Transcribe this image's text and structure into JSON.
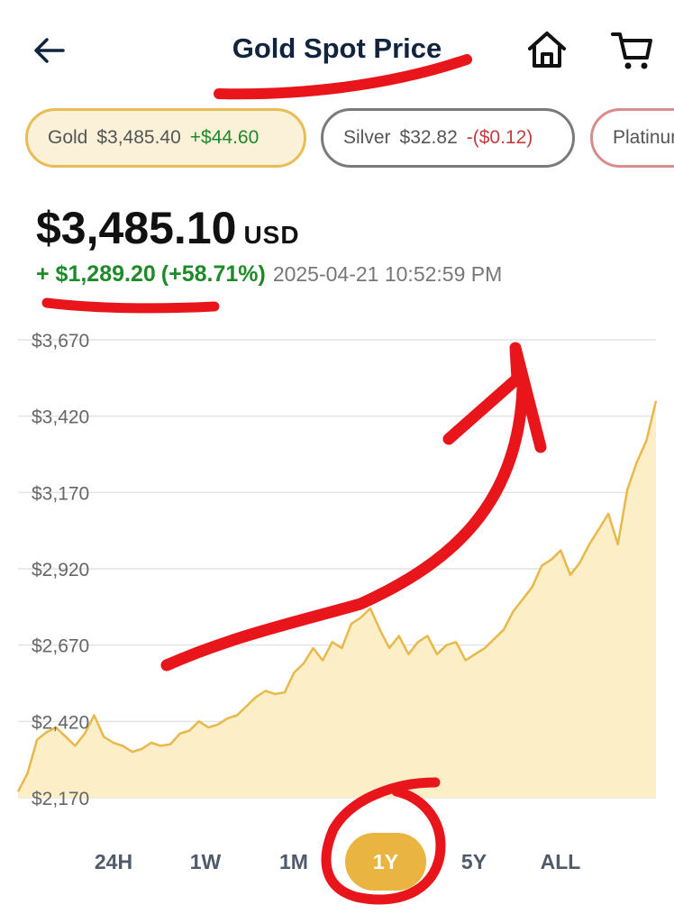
{
  "header": {
    "title": "Gold Spot Price",
    "back_icon": "arrow-left-icon",
    "home_icon": "home-icon",
    "cart_icon": "cart-icon"
  },
  "metals": [
    {
      "metal": "Gold",
      "price": "$3,485.40",
      "change": "+$44.60",
      "direction": "up",
      "selected": true
    },
    {
      "metal": "Silver",
      "price": "$32.82",
      "change": "-($0.12)",
      "direction": "down",
      "selected": false
    },
    {
      "metal": "Platinum",
      "price": "",
      "change": "",
      "direction": "down",
      "selected": false
    }
  ],
  "quote": {
    "price": "$3,485.10",
    "currency": "USD",
    "change": "+ $1,289.20",
    "change_pct": "(+58.71%)",
    "timestamp": "2025-04-21 10:52:59 PM"
  },
  "ranges": [
    "24H",
    "1W",
    "1M",
    "1Y",
    "5Y",
    "ALL"
  ],
  "selected_range": "1Y",
  "colors": {
    "accent": "#eab440",
    "line": "#e8b84a",
    "fill": "#fcefc8",
    "positive": "#1f8a2a",
    "negative": "#c43d3d",
    "annotation": "#e8151b"
  },
  "chart_data": {
    "type": "area",
    "title": "",
    "xlabel": "",
    "ylabel": "",
    "ylim": [
      2170,
      3670
    ],
    "y_ticks": [
      2170,
      2420,
      2670,
      2920,
      3170,
      3420,
      3670
    ],
    "y_tick_labels": [
      "$2,170",
      "$2,420",
      "$2,670",
      "$2,920",
      "$3,170",
      "$3,420",
      "$3,670"
    ],
    "grid": true,
    "series": [
      {
        "values": [
          2190,
          2250,
          2360,
          2385,
          2400,
          2370,
          2340,
          2380,
          2440,
          2370,
          2350,
          2340,
          2320,
          2330,
          2350,
          2340,
          2345,
          2380,
          2390,
          2420,
          2400,
          2410,
          2430,
          2440,
          2470,
          2500,
          2520,
          2510,
          2515,
          2580,
          2610,
          2660,
          2620,
          2680,
          2660,
          2740,
          2760,
          2790,
          2720,
          2660,
          2700,
          2640,
          2680,
          2700,
          2640,
          2670,
          2680,
          2620,
          2640,
          2660,
          2690,
          2720,
          2780,
          2820,
          2860,
          2930,
          2950,
          2980,
          2900,
          2940,
          3000,
          3050,
          3100,
          3000,
          3180,
          3270,
          3340,
          3470
        ]
      }
    ]
  }
}
